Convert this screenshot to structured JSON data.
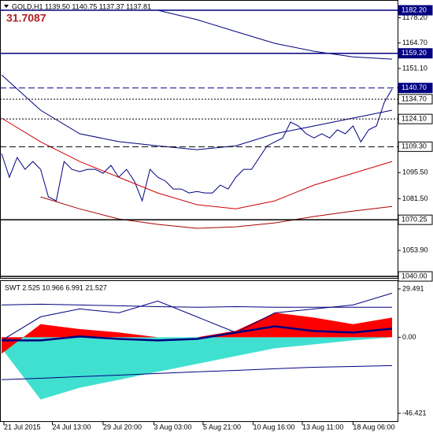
{
  "chart_data": [
    {
      "type": "line",
      "title": "GOLD,H1  1139.50 1140.75 1137.37 1137.81",
      "annotation": "31.7087",
      "xlim": [
        0,
        505
      ],
      "ylim": [
        1039.2,
        1186.0
      ],
      "yticks": [
        {
          "value": 1178.2,
          "label": "1178.20"
        },
        {
          "value": 1164.7,
          "label": "1164.70"
        },
        {
          "value": 1151.1,
          "label": "1151.10"
        },
        {
          "value": 1095.5,
          "label": "1095.50"
        },
        {
          "value": 1081.5,
          "label": "1081.50"
        },
        {
          "value": 1053.9,
          "label": "1053.90"
        }
      ],
      "levels": [
        {
          "value": 1182.2,
          "label": "1182.20",
          "color": "#000080",
          "dash": "solid"
        },
        {
          "value": 1159.2,
          "label": "1159.20",
          "color": "#000080",
          "dash": "solid"
        },
        {
          "value": 1140.7,
          "label": "1140.70",
          "color": "#000080",
          "dash": "dashed"
        },
        {
          "value": 1134.7,
          "label": "1134.70",
          "color": "#000000",
          "dash": "dotted"
        },
        {
          "value": 1124.1,
          "label": "1124.10",
          "color": "#000000",
          "dash": "dotted"
        },
        {
          "value": 1109.3,
          "label": "1109.30",
          "color": "#000000",
          "dash": "dashed"
        },
        {
          "value": 1070.25,
          "label": "1070.25",
          "color": "#000000",
          "dash": "solid"
        },
        {
          "value": 1040.0,
          "label": "1040.00",
          "color": "#000000",
          "dash": "solid"
        }
      ],
      "series": [
        {
          "color": "#000080",
          "x": [
            0,
            10,
            20,
            30,
            40,
            50,
            60,
            70,
            80,
            90,
            100,
            110,
            120,
            130,
            140,
            150,
            160,
            170,
            180,
            190,
            200,
            210,
            220,
            230,
            240,
            250,
            260,
            270,
            280,
            290,
            300,
            310,
            320,
            330,
            340,
            350,
            360,
            370,
            380,
            390,
            400,
            410,
            420,
            430,
            440,
            450,
            460,
            470,
            480,
            490,
            500
          ],
          "values": [
            1105.6,
            1093,
            1103.5,
            1097.2,
            1101.4,
            1097.2,
            1082.5,
            1080.4,
            1101.4,
            1097.2,
            1096,
            1097.2,
            1097.2,
            1095.1,
            1099.3,
            1093,
            1097.2,
            1090.9,
            1080.4,
            1097.2,
            1093,
            1090.9,
            1086.7,
            1086.7,
            1084.6,
            1085.4,
            1084.6,
            1084.6,
            1088.8,
            1086.7,
            1093,
            1097.2,
            1097.2,
            1103.5,
            1109.8,
            1111.9,
            1114,
            1122.5,
            1120.4,
            1116.2,
            1114,
            1116.2,
            1114,
            1118.3,
            1116.2,
            1120.4,
            1111.9,
            1118.3,
            1120.4,
            1133,
            1140.1
          ]
        },
        {
          "color": "#000080",
          "x": [
            0,
            50,
            100,
            150,
            200,
            250,
            300,
            350,
            400,
            450,
            500
          ],
          "values": [
            1147.7,
            1128.8,
            1116.2,
            1112,
            1109.8,
            1107.7,
            1109.8,
            1116.2,
            1120.4,
            1124.6,
            1128.8
          ]
        },
        {
          "color": "#000080",
          "x": [
            0,
            50,
            100,
            150,
            200,
            250,
            300,
            350,
            400,
            450,
            500
          ],
          "values": [
            null,
            null,
            null,
            null,
            1182.2,
            1177.2,
            1170.8,
            1164.5,
            1160.3,
            1157.3,
            1156.1
          ]
        },
        {
          "color": "#cc0000",
          "x": [
            0,
            50,
            100,
            150,
            200,
            250,
            300,
            350,
            400,
            450,
            500
          ],
          "values": [
            1124.6,
            1111.9,
            1101.4,
            1093,
            1084.6,
            1078.3,
            1076.1,
            1080.4,
            1088.8,
            1095.1,
            1101.4
          ]
        },
        {
          "color": "#aa0000",
          "x": [
            0,
            50,
            100,
            150,
            200,
            250,
            300,
            350,
            400,
            450,
            500
          ],
          "values": [
            null,
            1082.5,
            1076.1,
            1070.7,
            1067.8,
            1065.7,
            1066.5,
            1068.6,
            1072,
            1074.9,
            1077.4
          ]
        }
      ]
    },
    {
      "type": "area",
      "title": "SWT 2.525 10.966 6.991 21.527",
      "xlim": [
        0,
        505
      ],
      "ylim": [
        -51.2,
        34.3
      ],
      "yticks": [
        29.491,
        {
          "value": 0,
          "label": "0.00"
        },
        -46.421
      ],
      "xticks": [
        {
          "value": 3,
          "label": "21 Jul 2015"
        },
        {
          "value": 65,
          "label": "24 Jul 13:00"
        },
        {
          "value": 130,
          "label": "29 Jul 20:00"
        },
        {
          "value": 195,
          "label": "3 Aug 03:00"
        },
        {
          "value": 258,
          "label": "5 Aug 21:00"
        },
        {
          "value": 322,
          "label": "10 Aug 16:00"
        },
        {
          "value": 385,
          "label": "13 Aug 11:00"
        },
        {
          "value": 450,
          "label": "18 Aug 06:00"
        }
      ],
      "series": [
        {
          "color": "#40e0d0",
          "fill": true,
          "x": [
            0,
            50,
            100,
            150,
            200,
            250,
            300,
            350,
            400,
            450,
            500
          ],
          "values": [
            -6.7,
            -38,
            -30.8,
            -26,
            -21.1,
            -16.3,
            -11.5,
            -6.7,
            -4.3,
            -1.9,
            0
          ]
        },
        {
          "color": "#ff0000",
          "fill": true,
          "x": [
            0,
            50,
            100,
            150,
            200,
            250,
            300,
            350,
            400,
            450,
            500
          ],
          "values": [
            -10,
            8,
            5,
            3,
            0,
            0,
            4,
            15,
            12,
            8,
            12
          ]
        },
        {
          "color": "#000080",
          "fill": false,
          "x": [
            0,
            50,
            100,
            150,
            200,
            250,
            300,
            350,
            400,
            450,
            500
          ],
          "values": [
            19.7,
            20.2,
            19.7,
            19.2,
            18.7,
            18.3,
            18.7,
            18.3,
            18.3,
            18.3,
            18.3
          ]
        },
        {
          "color": "#000080",
          "fill": false,
          "x": [
            0,
            50,
            100,
            150,
            200,
            250,
            300,
            350,
            400,
            450,
            500
          ],
          "values": [
            -25.9,
            -25,
            -24,
            -23.1,
            -22.1,
            -21.1,
            -20.2,
            -19.2,
            -18.3,
            -17.8,
            -17.3
          ]
        },
        {
          "color": "#000080",
          "fill": false,
          "x": [
            0,
            50,
            100,
            150,
            200,
            250,
            300,
            350,
            400,
            450,
            500
          ],
          "values": [
            -1.9,
            12.5,
            17.3,
            14.9,
            22.1,
            12.5,
            2.9,
            14.9,
            17.3,
            19.7,
            26.9
          ]
        },
        {
          "color": "#000080",
          "fill": false,
          "width": 2.5,
          "x": [
            0,
            50,
            100,
            150,
            200,
            250,
            300,
            350,
            400,
            450,
            500
          ],
          "values": [
            -1.9,
            -1.9,
            0.5,
            -1,
            -1.9,
            -1,
            2.9,
            6.7,
            3.8,
            2.9,
            5.3
          ]
        }
      ]
    }
  ]
}
